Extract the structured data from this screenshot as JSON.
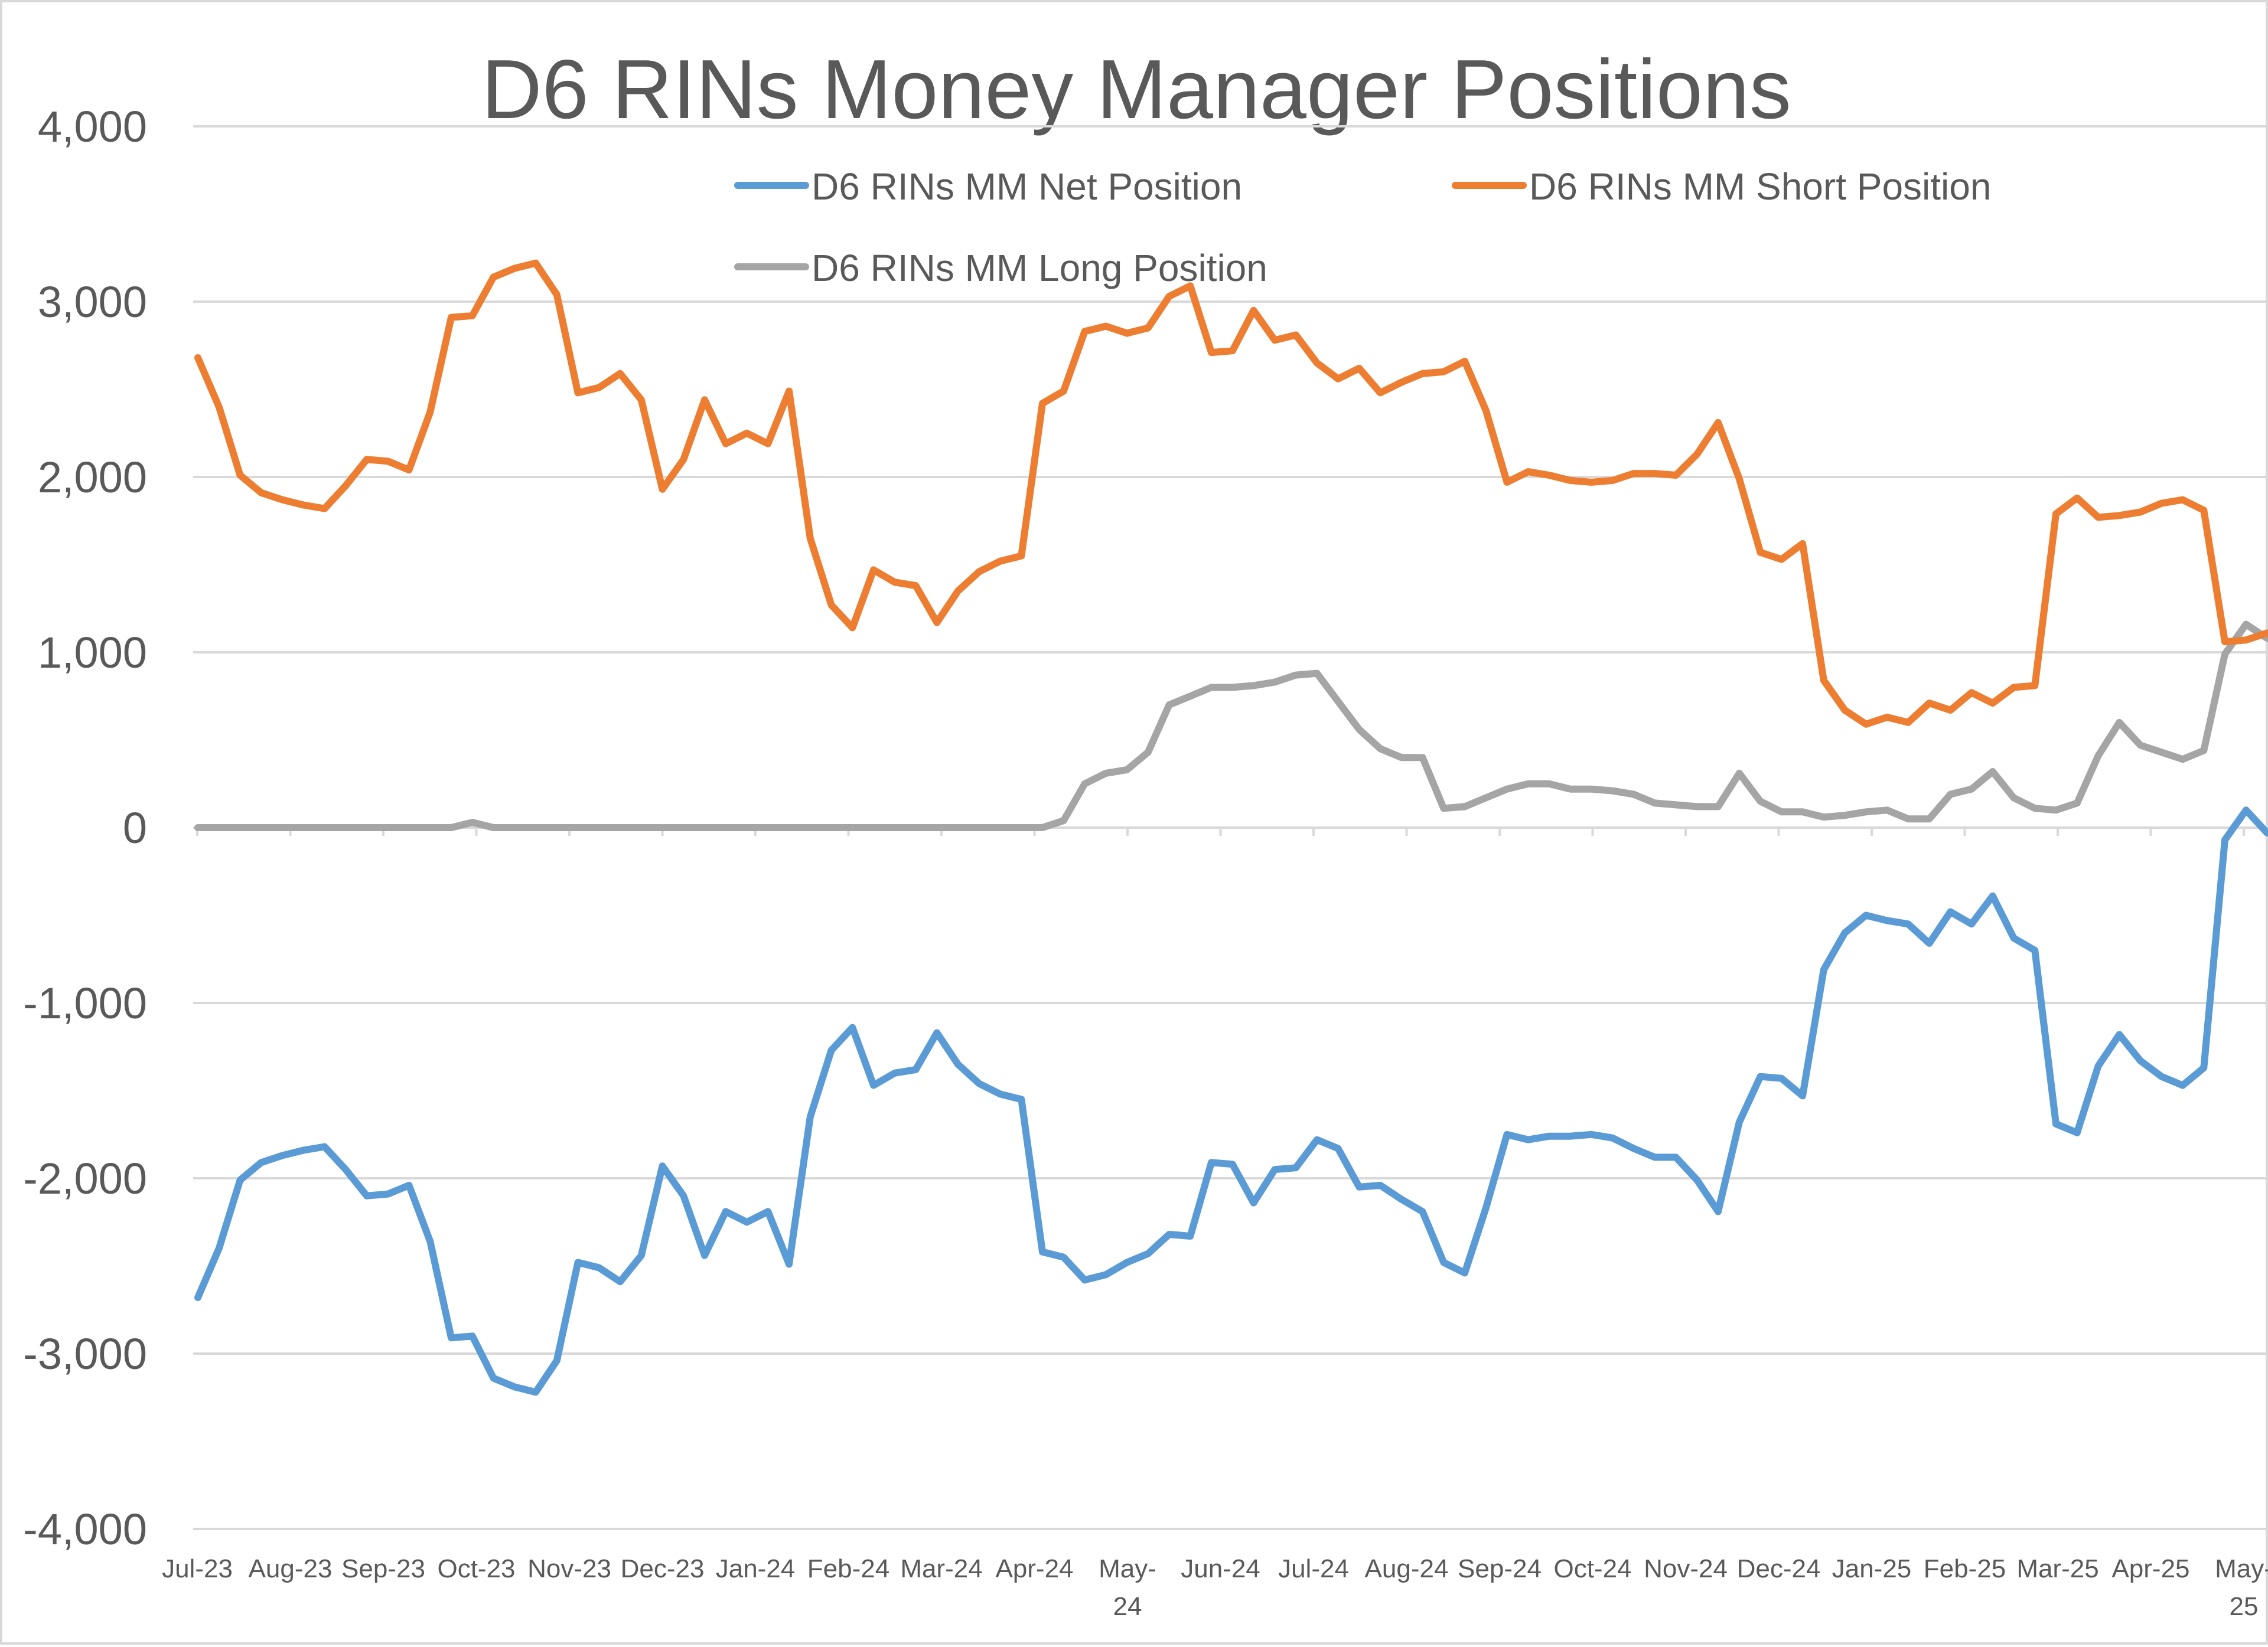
{
  "chart_data": {
    "type": "line",
    "title": "D6 RINs Money Manager Positions",
    "xlabel": "",
    "ylabel": "",
    "ylim": [
      -4000,
      4000
    ],
    "y_ticks": [
      4000,
      3000,
      2000,
      1000,
      0,
      -1000,
      -2000,
      -3000,
      -4000
    ],
    "y_tick_labels": [
      "4,000",
      "3,000",
      "2,000",
      "1,000",
      "0",
      "-1,000",
      "-2,000",
      "-3,000",
      "-4,000"
    ],
    "x_tick_labels": [
      [
        "Jul-23"
      ],
      [
        "Aug-23"
      ],
      [
        "Sep-23"
      ],
      [
        "Oct-23"
      ],
      [
        "Nov-23"
      ],
      [
        "Dec-23"
      ],
      [
        "Jan-24"
      ],
      [
        "Feb-24"
      ],
      [
        "Mar-24"
      ],
      [
        "Apr-24"
      ],
      [
        "May-",
        "24"
      ],
      [
        "Jun-24"
      ],
      [
        "Jul-24"
      ],
      [
        "Aug-24"
      ],
      [
        "Sep-24"
      ],
      [
        "Oct-24"
      ],
      [
        "Nov-24"
      ],
      [
        "Dec-24"
      ],
      [
        "Jan-25"
      ],
      [
        "Feb-25"
      ],
      [
        "Mar-25"
      ],
      [
        "Apr-25"
      ],
      [
        "May-",
        "25"
      ]
    ],
    "grid": true,
    "legend_position": "top",
    "series": [
      {
        "name": "D6 RINs MM Net Position",
        "color": "#5b9bd5",
        "values": [
          -2680,
          -2400,
          -2010,
          -1910,
          -1870,
          -1840,
          -1820,
          -1950,
          -2100,
          -2090,
          -2040,
          -2360,
          -2910,
          -2900,
          -3140,
          -3190,
          -3220,
          -3040,
          -2480,
          -2510,
          -2590,
          -2440,
          -1930,
          -2100,
          -2440,
          -2190,
          -2250,
          -2190,
          -2490,
          -1650,
          -1270,
          -1140,
          -1470,
          -1400,
          -1380,
          -1170,
          -1350,
          -1460,
          -1520,
          -1550,
          -2420,
          -2450,
          -2580,
          -2550,
          -2480,
          -2430,
          -2320,
          -2330,
          -1910,
          -1920,
          -2140,
          -1950,
          -1940,
          -1780,
          -1830,
          -2050,
          -2040,
          -2120,
          -2190,
          -2480,
          -2540,
          -2170,
          -1750,
          -1780,
          -1760,
          -1760,
          -1750,
          -1770,
          -1830,
          -1880,
          -1880,
          -2010,
          -2190,
          -1680,
          -1420,
          -1430,
          -1530,
          -810,
          -600,
          -500,
          -530,
          -550,
          -660,
          -480,
          -550,
          -390,
          -630,
          -700,
          -1690,
          -1740,
          -1360,
          -1180,
          -1330,
          -1420,
          -1470,
          -1370,
          -70,
          100,
          -30
        ]
      },
      {
        "name": "D6 RINs MM Short Position",
        "color": "#ed7d31",
        "values": [
          2680,
          2400,
          2010,
          1910,
          1870,
          1840,
          1820,
          1950,
          2100,
          2090,
          2040,
          2370,
          2910,
          2920,
          3140,
          3190,
          3220,
          3040,
          2480,
          2510,
          2590,
          2440,
          1930,
          2100,
          2440,
          2190,
          2250,
          2190,
          2490,
          1650,
          1270,
          1140,
          1470,
          1400,
          1380,
          1170,
          1350,
          1460,
          1520,
          1550,
          2420,
          2490,
          2830,
          2860,
          2820,
          2850,
          3030,
          3090,
          2710,
          2720,
          2950,
          2780,
          2810,
          2650,
          2560,
          2620,
          2480,
          2540,
          2590,
          2600,
          2660,
          2380,
          1970,
          2030,
          2010,
          1980,
          1970,
          1980,
          2020,
          2020,
          2010,
          2130,
          2310,
          1990,
          1570,
          1530,
          1620,
          840,
          670,
          590,
          630,
          600,
          710,
          670,
          770,
          710,
          800,
          810,
          1790,
          1880,
          1770,
          1780,
          1800,
          1850,
          1870,
          1810,
          1060,
          1070,
          1110
        ]
      },
      {
        "name": "D6 RINs MM Long Position",
        "color": "#a5a5a5",
        "values": [
          0,
          0,
          0,
          0,
          0,
          0,
          0,
          0,
          0,
          0,
          0,
          0,
          0,
          30,
          0,
          0,
          0,
          0,
          0,
          0,
          0,
          0,
          0,
          0,
          0,
          0,
          0,
          0,
          0,
          0,
          0,
          0,
          0,
          0,
          0,
          0,
          0,
          0,
          0,
          0,
          0,
          40,
          250,
          310,
          330,
          430,
          700,
          750,
          800,
          800,
          810,
          830,
          870,
          880,
          720,
          560,
          450,
          400,
          400,
          110,
          120,
          170,
          220,
          250,
          250,
          220,
          220,
          210,
          190,
          140,
          130,
          120,
          120,
          310,
          150,
          90,
          90,
          60,
          70,
          90,
          100,
          50,
          50,
          190,
          220,
          320,
          170,
          110,
          100,
          140,
          410,
          600,
          470,
          430,
          390,
          440,
          990,
          1160,
          1080
        ]
      }
    ]
  }
}
